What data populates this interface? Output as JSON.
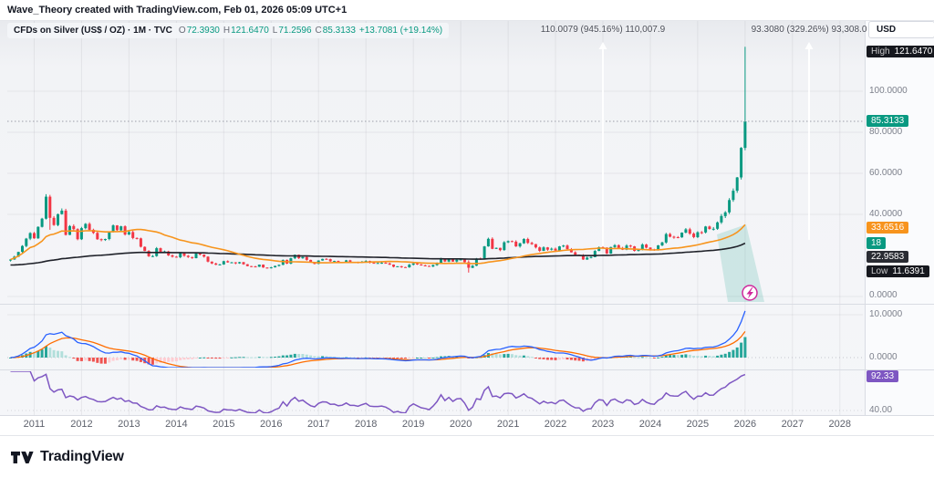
{
  "meta": {
    "attribution": "Wave_Theory created with TradingView.com, Feb 01, 2026 05:09 UTC+1"
  },
  "header": {
    "symbol_title": "CFDs on Silver (US$ / OZ) · 1M · TVC",
    "ohlc": {
      "o_label": "O",
      "o": "72.3930",
      "h_label": "H",
      "h": "121.6470",
      "l_label": "L",
      "l": "71.2596",
      "c_label": "C",
      "c": "85.3133",
      "change": "+13.7081 (+19.14%)"
    },
    "currency_button": "USD"
  },
  "price_axis": {
    "ticks": [
      "100.0000",
      "80.0000",
      "60.0000",
      "40.0000",
      "0.0000"
    ],
    "high_badge": {
      "label": "High",
      "value": "121.6470"
    },
    "last_badge": {
      "value": "85.3133",
      "color": "#089981"
    },
    "ma_fast_badge": {
      "value": "33.6516",
      "color": "#f7941d"
    },
    "aux_badge": {
      "value": "18",
      "color": "#089981"
    },
    "ma_slow_badge": {
      "value": "22.9583",
      "color": "#2a2c33"
    },
    "low_badge": {
      "label": "Low",
      "value": "11.6391"
    }
  },
  "macd_axis": {
    "ticks": [
      "10.0000",
      "0.0000"
    ]
  },
  "rsi_axis": {
    "badge": "92.33",
    "tick": "40.00",
    "badge_color": "#7e57c2"
  },
  "time_axis": {
    "labels": [
      "2011",
      "2012",
      "2013",
      "2014",
      "2015",
      "2016",
      "2017",
      "2018",
      "2019",
      "2020",
      "2021",
      "2022",
      "2023",
      "2024",
      "2025",
      "2026",
      "2027",
      "2028"
    ]
  },
  "footer": {
    "brand": "TradingView"
  },
  "chart_data": {
    "type": "candlestick",
    "symbol": "CFDs on Silver (US$ / OZ)",
    "timeframe": "1M",
    "x_start_year": 2010.5,
    "x_step_months": 1,
    "price_pane": {
      "ylim": [
        0,
        134
      ],
      "yticks": [
        0,
        40,
        60,
        80,
        100
      ],
      "closes": [
        18.0,
        19.4,
        21.7,
        24.6,
        28.2,
        30.9,
        28.3,
        33.9,
        37.9,
        48.6,
        38.3,
        34.8,
        40.1,
        41.8,
        30.0,
        34.3,
        32.8,
        27.9,
        33.3,
        35.4,
        32.5,
        31.0,
        27.9,
        27.5,
        28.0,
        31.4,
        34.6,
        32.3,
        34.2,
        30.2,
        31.4,
        28.5,
        28.3,
        24.2,
        22.2,
        19.6,
        19.7,
        23.5,
        21.7,
        21.9,
        20.0,
        19.4,
        19.1,
        21.2,
        19.8,
        19.2,
        18.7,
        21.0,
        20.4,
        19.4,
        17.0,
        16.1,
        15.5,
        15.6,
        17.2,
        16.6,
        16.6,
        16.1,
        16.7,
        15.7,
        14.8,
        14.6,
        14.5,
        15.5,
        14.1,
        13.8,
        14.2,
        14.9,
        15.4,
        17.8,
        16.0,
        18.6,
        20.3,
        18.6,
        19.2,
        17.8,
        16.5,
        15.9,
        17.5,
        18.3,
        18.2,
        17.2,
        17.3,
        16.6,
        16.8,
        17.6,
        16.7,
        16.7,
        16.4,
        16.9,
        17.3,
        16.4,
        16.3,
        16.3,
        16.4,
        16.1,
        15.5,
        14.5,
        14.7,
        14.3,
        14.2,
        15.5,
        16.1,
        15.6,
        15.1,
        14.9,
        14.6,
        15.3,
        16.3,
        18.4,
        17.0,
        18.1,
        17.0,
        17.9,
        18.0,
        16.7,
        14.0,
        15.0,
        18.5,
        18.2,
        24.4,
        28.1,
        23.2,
        23.7,
        22.6,
        26.4,
        27.0,
        26.7,
        24.4,
        25.9,
        28.0,
        26.1,
        25.5,
        23.9,
        22.2,
        23.9,
        22.8,
        23.3,
        22.4,
        24.4,
        24.8,
        23.1,
        21.5,
        20.3,
        20.2,
        18.0,
        19.0,
        19.2,
        22.2,
        24.0,
        23.8,
        20.9,
        24.1,
        25.0,
        23.6,
        22.8,
        24.8,
        24.4,
        22.2,
        22.9,
        25.3,
        23.8,
        22.9,
        22.6,
        24.9,
        26.3,
        30.4,
        29.1,
        28.9,
        28.8,
        31.1,
        32.7,
        30.6,
        28.9,
        31.3,
        31.2,
        34.1,
        32.9,
        33.0,
        36.1,
        39.2,
        41.0,
        47.0,
        51.5,
        58.0,
        72.4,
        85.3133
      ],
      "special_candles": {
        "9": {
          "o": 37.9,
          "h": 49.82,
          "l": 37.5,
          "c": 48.6
        },
        "10": {
          "o": 48.6,
          "h": 49.5,
          "l": 32.5,
          "c": 38.3
        },
        "116": {
          "o": 16.7,
          "h": 17.6,
          "l": 11.6391,
          "c": 14.0
        },
        "186": {
          "o": 72.393,
          "h": 121.647,
          "l": 71.2596,
          "c": 85.3133
        }
      },
      "last_candle": {
        "open": 72.393,
        "high": 121.647,
        "low": 71.2596,
        "close": 85.3133
      },
      "all_time_high": 121.647,
      "all_time_low": 11.6391,
      "overlays": [
        {
          "name": "MA fast",
          "type": "sma",
          "length": 30,
          "color": "#f7941d",
          "last_value": 33.6516
        },
        {
          "name": "MA slow",
          "type": "ema",
          "length": 140,
          "color": "#20222a",
          "last_value": 22.9583
        }
      ],
      "colors": {
        "up": "#089981",
        "down": "#f23645"
      }
    },
    "macd_pane": {
      "type": "macd",
      "fast": 12,
      "slow": 26,
      "signal": 9,
      "yticks": [
        0,
        10
      ],
      "colors": {
        "macd": "#2962ff",
        "signal": "#ff6d00",
        "hist_up": "#26a69a",
        "hist_up_weak": "#b2dfdb",
        "hist_down": "#ef5350",
        "hist_down_weak": "#ffcdd2"
      }
    },
    "rsi_pane": {
      "type": "rsi",
      "length": 14,
      "last_value": 92.33,
      "ytick": 40,
      "color": "#7e57c2"
    },
    "annotations": [
      {
        "kind": "vertical-arrow",
        "label": "110.0079 (945.16%) 110,007.9",
        "x_year": 2023.0,
        "from_value": 24.4,
        "to_value": 124
      },
      {
        "kind": "vertical-arrow",
        "label": "93.3080 (329.26%) 93,308.0",
        "x_year": 2027.35,
        "from_value": 27.6,
        "to_value": 124
      }
    ]
  }
}
